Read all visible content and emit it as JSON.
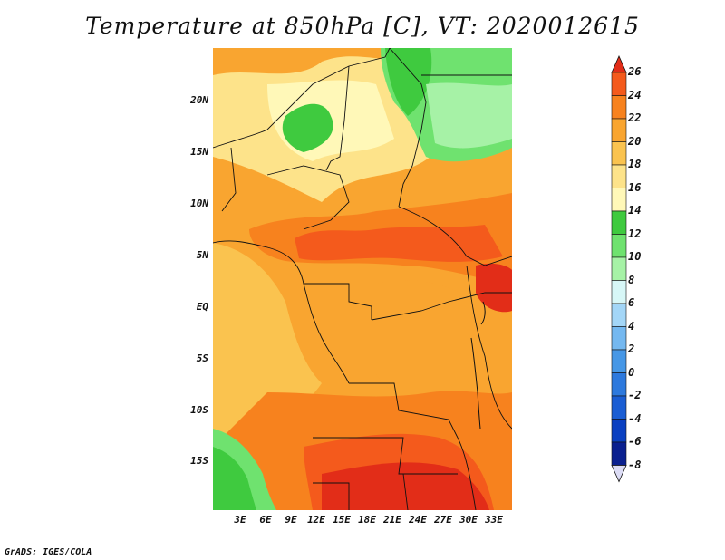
{
  "title": "Temperature at 850hPa [C], VT: 2020012615",
  "credit": "GrADS: IGES/COLA",
  "lat_labels": [
    "20N",
    "15N",
    "10N",
    "5N",
    "EQ",
    "5S",
    "10S",
    "15S"
  ],
  "lon_labels": [
    "3E",
    "6E",
    "9E",
    "12E",
    "15E",
    "18E",
    "21E",
    "24E",
    "27E",
    "30E",
    "33E"
  ],
  "colorbar": {
    "labels": [
      "26",
      "24",
      "22",
      "20",
      "18",
      "16",
      "14",
      "12",
      "10",
      "8",
      "6",
      "4",
      "2",
      "0",
      "-2",
      "-4",
      "-6",
      "-8"
    ],
    "colors": [
      "#e22d18",
      "#f45a1c",
      "#f7821e",
      "#f9a530",
      "#fac34f",
      "#fde38a",
      "#fff8b8",
      "#3fca3f",
      "#6fe26f",
      "#a6f2a6",
      "#d7f7f7",
      "#a3d6f7",
      "#74b8f0",
      "#4697e6",
      "#2d79dd",
      "#1a5dd3",
      "#0a40c1",
      "#0a208f",
      "#dcdcf5"
    ]
  }
}
